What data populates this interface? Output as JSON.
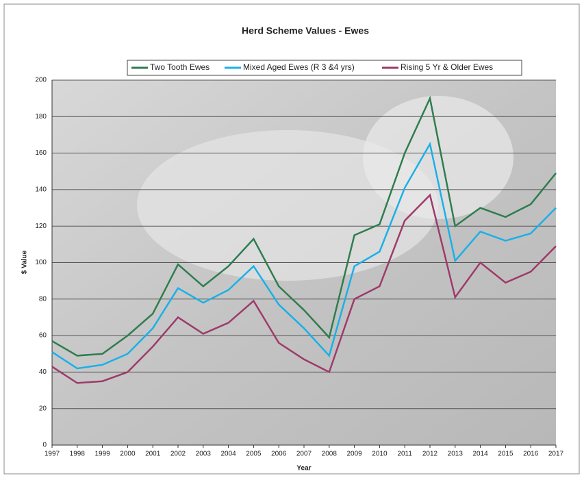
{
  "chart_data": {
    "type": "line",
    "title": "Herd Scheme Values - Ewes",
    "x_label": "Year",
    "y_label": "$ Value",
    "categories": [
      "1997",
      "1998",
      "1999",
      "2000",
      "2001",
      "2002",
      "2003",
      "2004",
      "2005",
      "2006",
      "2007",
      "2008",
      "2009",
      "2010",
      "2011",
      "2012",
      "2013",
      "2014",
      "2015",
      "2016",
      "2017"
    ],
    "series": [
      {
        "name": "Two Tooth Ewes",
        "color": "#2e7d4f",
        "values": [
          57,
          49,
          50,
          60,
          72,
          99,
          87,
          98,
          113,
          87,
          74,
          59,
          115,
          121,
          160,
          190,
          120,
          130,
          125,
          132,
          149
        ]
      },
      {
        "name": "Mixed Aged Ewes (R 3 &4 yrs)",
        "color": "#1ab0e8",
        "values": [
          51,
          42,
          44,
          50,
          64,
          86,
          78,
          85,
          98,
          77,
          64,
          49,
          98,
          106,
          141,
          165,
          101,
          117,
          112,
          116,
          130
        ]
      },
      {
        "name": "Rising 5 Yr & Older Ewes",
        "color": "#9e3a6a",
        "values": [
          43,
          34,
          35,
          40,
          54,
          70,
          61,
          67,
          79,
          56,
          47,
          40,
          80,
          87,
          123,
          137,
          81,
          100,
          89,
          95,
          109
        ]
      }
    ],
    "ylim": [
      0,
      200
    ],
    "yticks": [
      0,
      20,
      40,
      60,
      80,
      100,
      120,
      140,
      160,
      180,
      200
    ],
    "grid": true,
    "legend": "top"
  }
}
